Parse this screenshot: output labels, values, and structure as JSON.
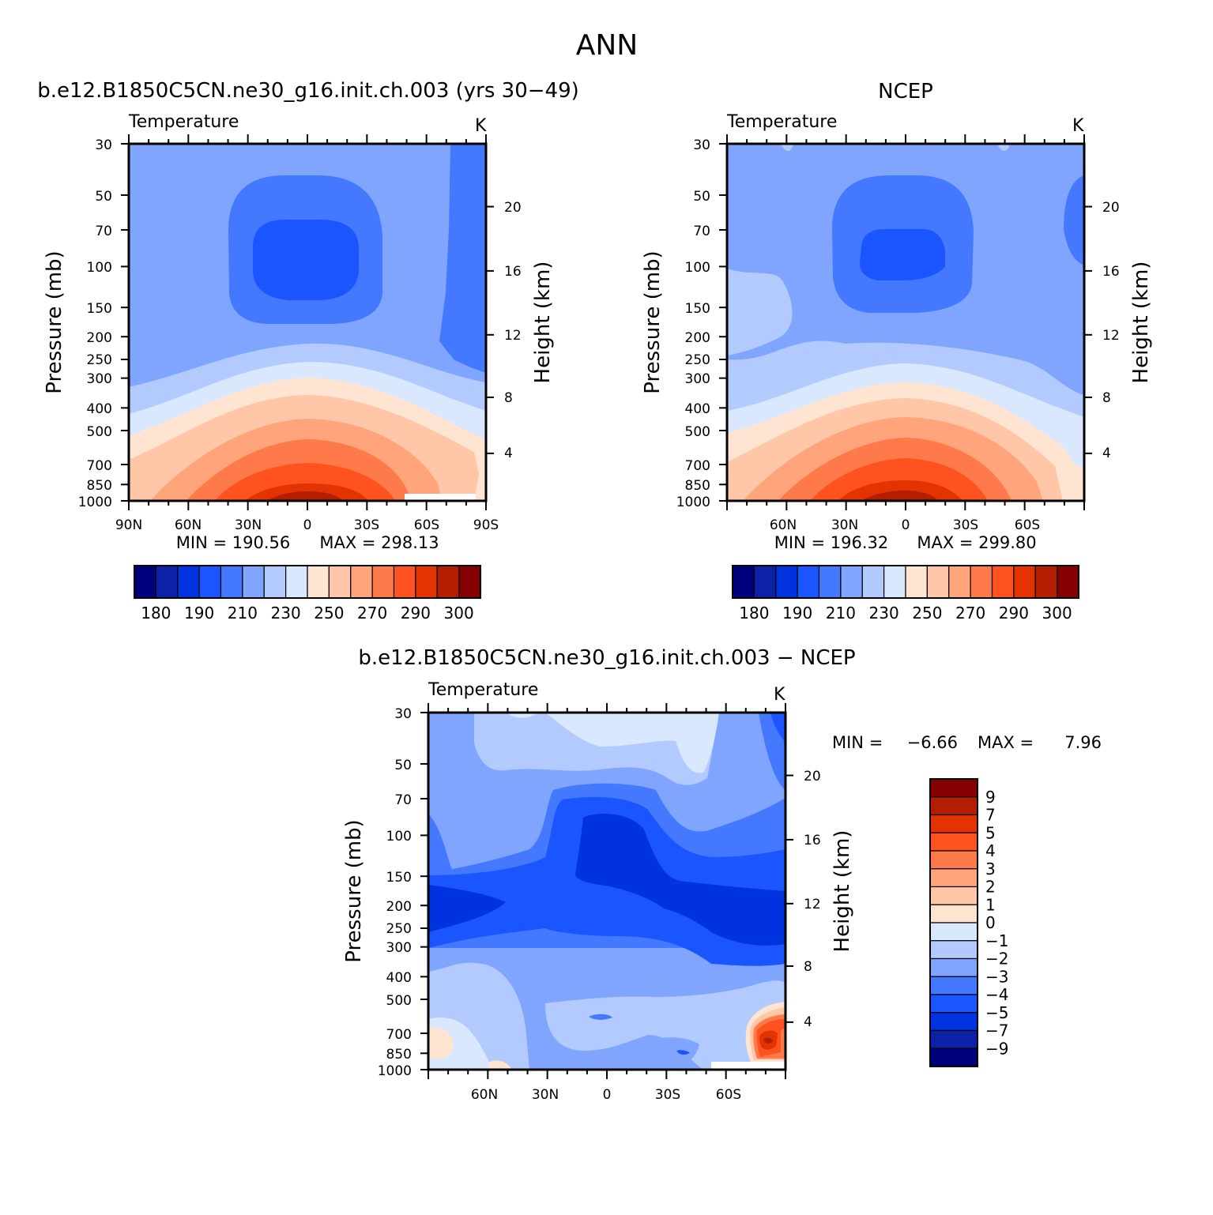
{
  "figure": {
    "season": "ANN",
    "model_title": "b.e12.B1850C5CN.ne30_g16.init.ch.003 (yrs 30−49)",
    "obs_title": "NCEP",
    "diff_title": "b.e12.B1850C5CN.ne30_g16.init.ch.003 − NCEP"
  },
  "common": {
    "panel_label": "Temperature",
    "units": "K",
    "ylabel_left": "Pressure (mb)",
    "ylabel_right": "Height (km)",
    "pressure_ticks": [
      "30",
      "50",
      "70",
      "100",
      "150",
      "200",
      "250",
      "300",
      "400",
      "500",
      "700",
      "850",
      "1000"
    ],
    "height_ticks": [
      "20",
      "16",
      "12",
      "8",
      "4"
    ]
  },
  "chart_data": [
    {
      "type": "heatmap",
      "panel": "model",
      "title": "b.e12.B1850C5CN.ne30_g16.init.ch.003 (yrs 30−49)",
      "subtitle": "Temperature",
      "units": "K",
      "ylabel": "Pressure (mb)",
      "ylabel_right": "Height (km)",
      "x_ticks": [
        "90N",
        "60N",
        "30N",
        "0",
        "30S",
        "60S",
        "90S"
      ],
      "y_range_mb": [
        1000,
        30
      ],
      "min_label": "MIN = 190.56",
      "max_label": "MAX = 298.13",
      "min": 190.56,
      "max": 298.13,
      "colorbar": {
        "labels": [
          "180",
          "190",
          "210",
          "230",
          "250",
          "270",
          "290",
          "300"
        ],
        "colors": [
          "#00007f",
          "#0a21a8",
          "#0033e0",
          "#1a55ff",
          "#4479ff",
          "#7fa5ff",
          "#b3caff",
          "#d9e8ff",
          "#ffe4d1",
          "#ffc6a8",
          "#ffa47b",
          "#ff7a4a",
          "#ff521e",
          "#e33300",
          "#b41d00",
          "#850000"
        ]
      }
    },
    {
      "type": "heatmap",
      "panel": "observations",
      "title": "NCEP",
      "subtitle": "Temperature",
      "units": "K",
      "ylabel": "Pressure (mb)",
      "ylabel_right": "Height (km)",
      "x_ticks": [
        "60N",
        "30N",
        "0",
        "30S",
        "60S"
      ],
      "y_range_mb": [
        1000,
        30
      ],
      "min_label": "MIN = 196.32",
      "max_label": "MAX = 299.80",
      "min": 196.32,
      "max": 299.8,
      "colorbar": {
        "labels": [
          "180",
          "190",
          "210",
          "230",
          "250",
          "270",
          "290",
          "300"
        ],
        "colors": [
          "#00007f",
          "#0a21a8",
          "#0033e0",
          "#1a55ff",
          "#4479ff",
          "#7fa5ff",
          "#b3caff",
          "#d9e8ff",
          "#ffe4d1",
          "#ffc6a8",
          "#ffa47b",
          "#ff7a4a",
          "#ff521e",
          "#e33300",
          "#b41d00",
          "#850000"
        ]
      }
    },
    {
      "type": "heatmap",
      "panel": "difference",
      "title": "b.e12.B1850C5CN.ne30_g16.init.ch.003 − NCEP",
      "subtitle": "Temperature",
      "units": "K",
      "ylabel": "Pressure (mb)",
      "ylabel_right": "Height (km)",
      "x_ticks": [
        "60N",
        "30N",
        "0",
        "30S",
        "60S"
      ],
      "y_range_mb": [
        1000,
        30
      ],
      "min_label": "MIN =",
      "min_value": "−6.66",
      "max_label": "MAX =",
      "max_value": "7.96",
      "min": -6.66,
      "max": 7.96,
      "colorbar": {
        "labels": [
          "9",
          "7",
          "5",
          "4",
          "3",
          "2",
          "1",
          "0",
          "−1",
          "−2",
          "−3",
          "−4",
          "−5",
          "−7",
          "−9"
        ],
        "colors": [
          "#850000",
          "#b41d00",
          "#e33300",
          "#ff521e",
          "#ff7a4a",
          "#ffa47b",
          "#ffc6a8",
          "#ffe4d1",
          "#d9e8ff",
          "#b3caff",
          "#7fa5ff",
          "#4479ff",
          "#1a55ff",
          "#0033e0",
          "#0a21a8",
          "#00007f"
        ]
      }
    }
  ]
}
